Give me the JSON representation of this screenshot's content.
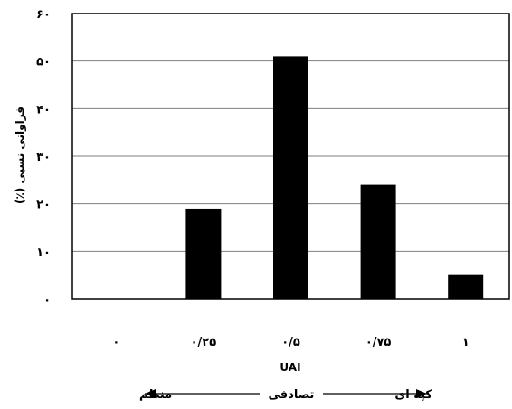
{
  "chart_data": {
    "type": "bar",
    "categories": [
      "۰",
      "۰/۲۵",
      "۰/۵",
      "۰/۷۵",
      "۱"
    ],
    "values": [
      0,
      19,
      51,
      24,
      5
    ],
    "y_ticks": [
      "۰",
      "۱۰",
      "۲۰",
      "۳۰",
      "۴۰",
      "۵۰",
      "۶۰"
    ],
    "ylim": [
      0,
      60
    ],
    "ylabel": "فراوانی نسبی (٪)",
    "xlabel": "UAI",
    "grid": true,
    "bar_color": "#000000",
    "grid_color": "#7f7f7f",
    "annotations": {
      "left": "منظم",
      "center": "تصادفی",
      "right": "کپه ای"
    }
  }
}
